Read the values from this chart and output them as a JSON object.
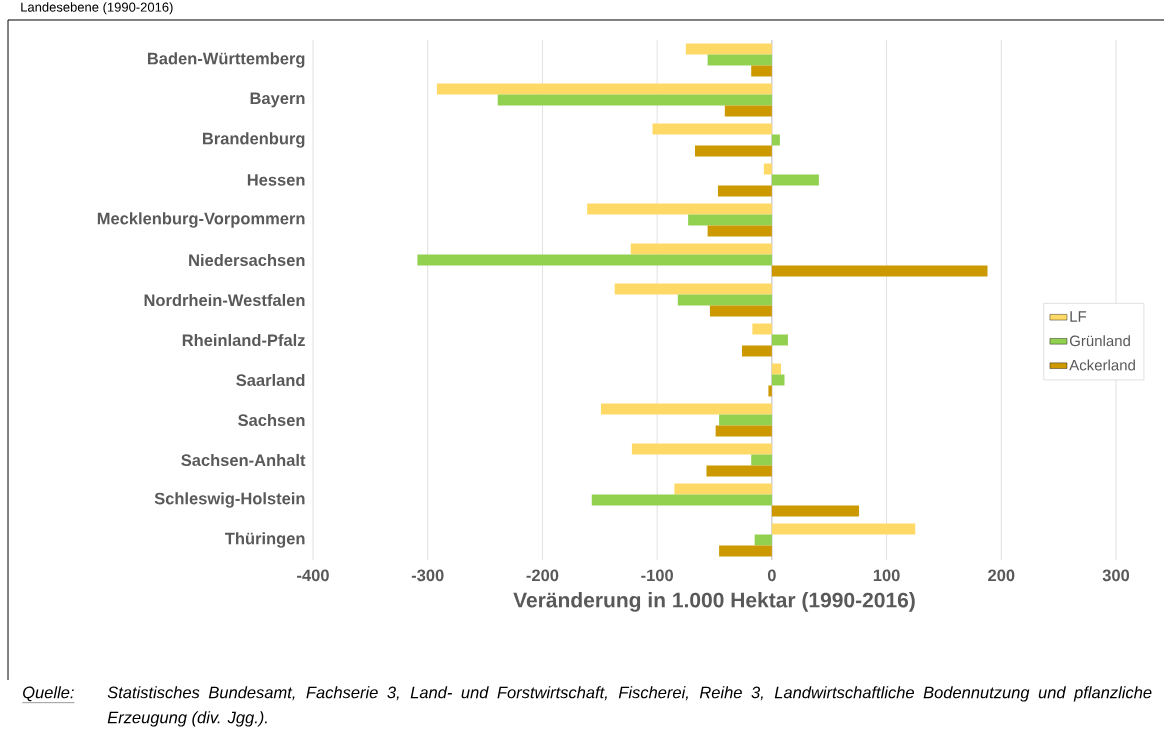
{
  "chart_data": {
    "type": "bar",
    "orientation": "horizontal",
    "title": "Landesebene (1990-2016)",
    "xlabel": "Veränderung in 1.000 Hektar (1990-2016)",
    "categories": [
      "Baden-Württemberg",
      "Bayern",
      "Brandenburg",
      "Hessen",
      "Mecklenburg-Vorpommern",
      "Niedersachsen",
      "Nordrhein-Westfalen",
      "Rheinland-Pfalz",
      "Saarland",
      "Sachsen",
      "Sachsen-Anhalt",
      "Schleswig-Holstein",
      "Thüringen"
    ],
    "series": [
      {
        "name": "LF",
        "color": "#ffd966",
        "values": [
          -75,
          -292,
          -104,
          -7,
          -161,
          -123,
          -137,
          -17,
          8,
          -149,
          -122,
          -85,
          125
        ]
      },
      {
        "name": "Grünland",
        "color": "#92d050",
        "values": [
          -56,
          -239,
          7,
          41,
          -73,
          -309,
          -82,
          14,
          11,
          -46,
          -18,
          -157,
          -15
        ]
      },
      {
        "name": "Ackerland",
        "color": "#cc9900",
        "values": [
          -18,
          -41,
          -67,
          -47,
          -56,
          188,
          -54,
          -26,
          -3,
          -49,
          -57,
          76,
          -46
        ]
      }
    ],
    "xlim": [
      -400,
      300
    ],
    "xticks": [
      -400,
      -300,
      -200,
      -100,
      0,
      100,
      200,
      300
    ],
    "grid": "x",
    "legend": "right",
    "annotations": [
      "Quelle:",
      "Statistisches Bundesamt, Fachserie 3, Land- und Forstwirtschaft, Fischerei, Reihe 3, Landwirtschaftliche Bodennutzung und pflanzliche Erzeugung (div. Jgg.)."
    ]
  }
}
